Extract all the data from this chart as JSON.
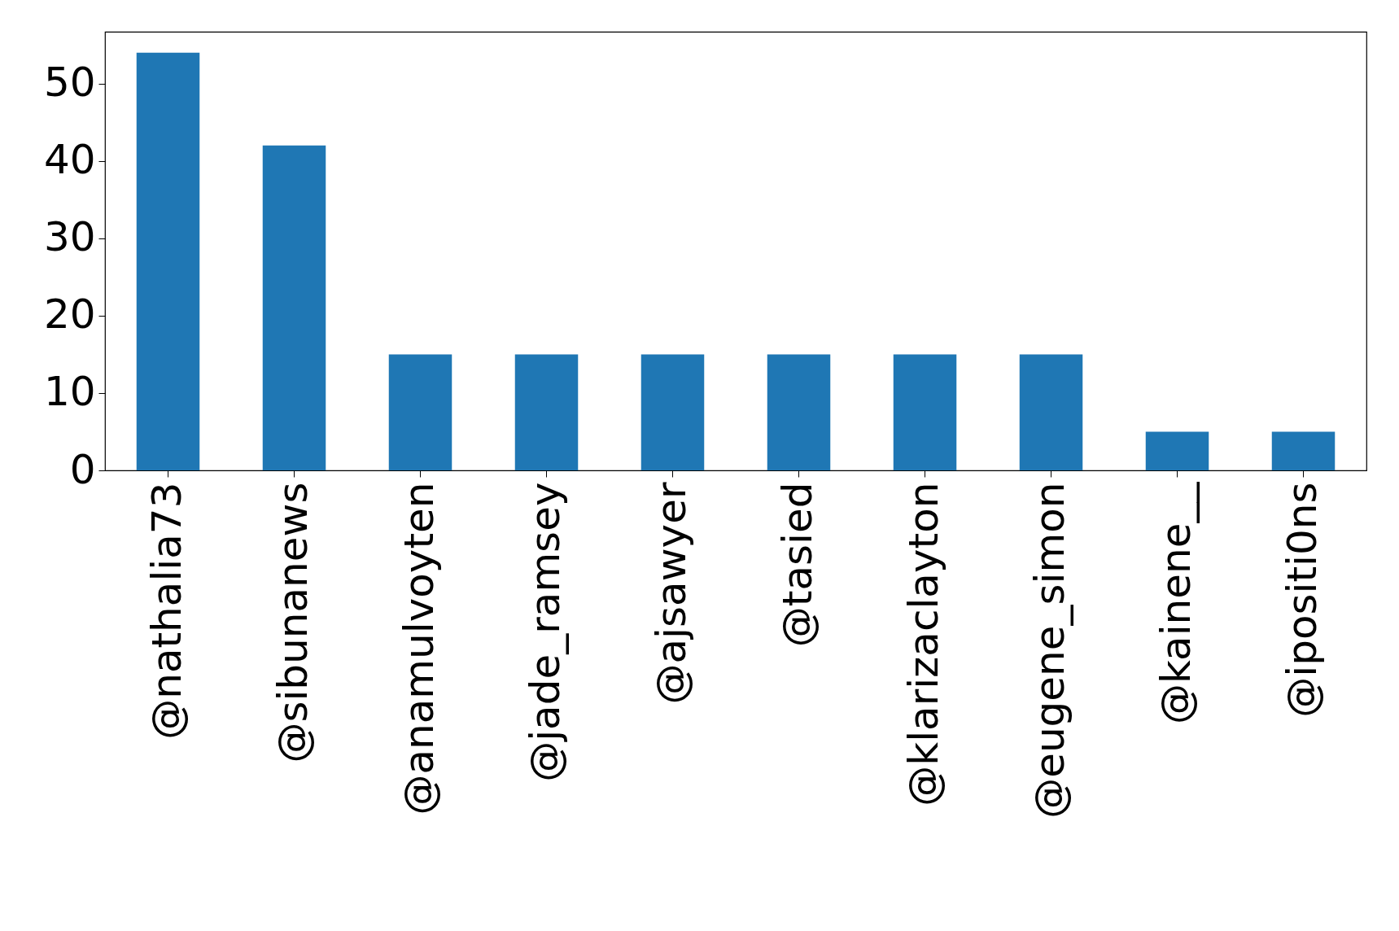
{
  "chart_data": {
    "type": "bar",
    "categories": [
      "@nathalia73",
      "@sibunanews",
      "@anamulvoyten",
      "@jade_ramsey",
      "@ajsawyer",
      "@tasied",
      "@klarizaclayton",
      "@eugene_simon",
      "@kainene__",
      "@ipositi0ns"
    ],
    "values": [
      54,
      42,
      15,
      15,
      15,
      15,
      15,
      15,
      5,
      5
    ],
    "color": "#1f77b4",
    "ylim": [
      0,
      56.7
    ],
    "yticks": [
      0,
      10,
      20,
      30,
      40,
      50
    ],
    "grid": false
  }
}
